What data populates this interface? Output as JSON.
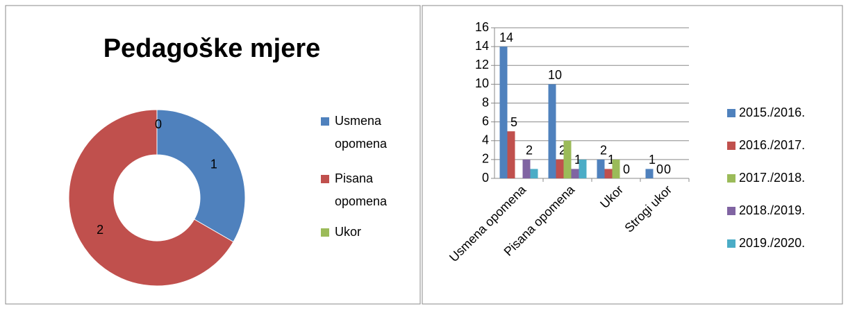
{
  "chart_data": [
    {
      "type": "donut",
      "title": "Pedagoške mjere",
      "categories": [
        "Usmena opomena",
        "Pisana opomena",
        "Ukor"
      ],
      "values": [
        1,
        2,
        0
      ],
      "colors": [
        "#4f81bd",
        "#c0504d",
        "#9bbb59"
      ],
      "legend": "right"
    },
    {
      "type": "bar",
      "categories": [
        "Usmena opomena",
        "Pisana opomena",
        "Ukor",
        "Strogi ukor"
      ],
      "series": [
        {
          "name": "2015./2016.",
          "color": "#4f81bd",
          "values": [
            14,
            10,
            2,
            1
          ],
          "value_labels": [
            "14",
            "10",
            "2",
            "1"
          ]
        },
        {
          "name": "2016./2017.",
          "color": "#c0504d",
          "values": [
            5,
            2,
            1,
            0
          ],
          "value_labels": [
            "5",
            "2",
            "1",
            "0"
          ]
        },
        {
          "name": "2017./2018.",
          "color": "#9bbb59",
          "values": [
            0,
            4,
            2,
            0
          ],
          "value_labels": [
            null,
            null,
            null,
            "0"
          ]
        },
        {
          "name": "2018./2019.",
          "color": "#8064a2",
          "values": [
            2,
            1,
            0,
            0
          ],
          "value_labels": [
            "2",
            "1",
            "0",
            null
          ]
        },
        {
          "name": "2019./2020.",
          "color": "#4bacc6",
          "values": [
            1,
            2,
            0,
            0
          ],
          "value_labels": [
            null,
            null,
            null,
            null
          ]
        }
      ],
      "ylim": [
        0,
        16
      ],
      "yticks": [
        0,
        2,
        4,
        6,
        8,
        10,
        12,
        14,
        16
      ],
      "grid": true,
      "legend": "right"
    }
  ]
}
